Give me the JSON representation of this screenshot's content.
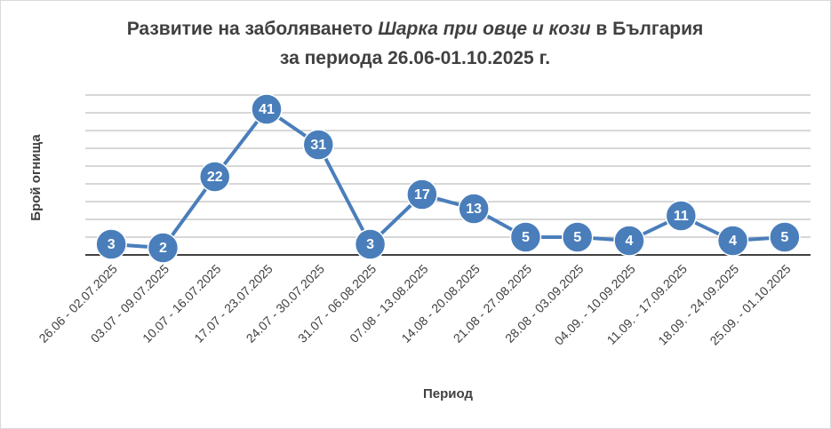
{
  "chart_data": {
    "type": "line",
    "title_lines": [
      [
        "Развитие на заболяването ",
        "Шарка при овце и кози",
        " в България"
      ],
      [
        "за периода 26.06-01.10.2025 г."
      ]
    ],
    "x_label": "Период",
    "y_label": "Брой огнища",
    "categories": [
      "26.06 - 02.07.2025",
      "03.07 - 09.07.2025",
      "10.07 - 16.07.2025",
      "17.07 - 23.07.2025",
      "24.07 - 30.07.2025",
      "31.07 - 06.08.2025",
      "07.08 - 13.08.2025",
      "14.08 - 20.08.2025",
      "21.08 - 27.08.2025",
      "28.08 - 03.09.2025",
      "04.09. - 10.09.2025",
      "11.09. - 17.09.2025",
      "18.09. - 24.09.2025",
      "25.09. - 01.10.2025"
    ],
    "series": [
      {
        "name": "Брой огнища",
        "color": "#4a7ebb",
        "values": [
          3,
          2,
          22,
          41,
          31,
          3,
          17,
          13,
          5,
          5,
          4,
          11,
          4,
          5
        ]
      }
    ],
    "ylim": [
      0,
      45
    ],
    "yticks": [
      0,
      5,
      10,
      15,
      20,
      25,
      30,
      35,
      40,
      45
    ],
    "grid": true,
    "legend": false
  }
}
